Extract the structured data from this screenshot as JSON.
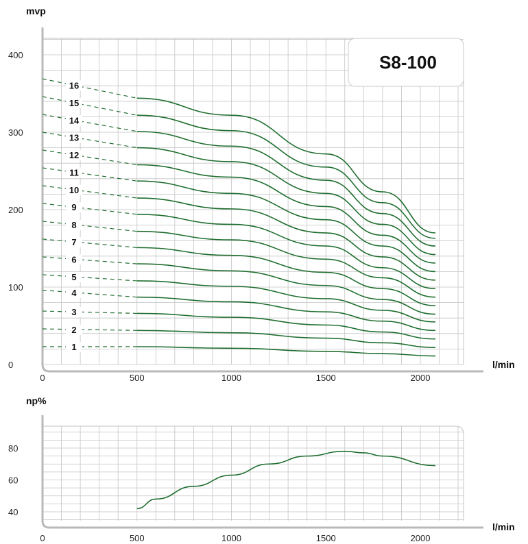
{
  "chart_data": [
    {
      "type": "line",
      "title": "S8-100",
      "ylabel": "mvp",
      "xlabel": "l/min",
      "xlim": [
        0,
        2200
      ],
      "ylim": [
        0,
        420
      ],
      "x_ticks": [
        "0",
        "500",
        "1000",
        "1500",
        "2000"
      ],
      "y_ticks": [
        "0",
        "100",
        "200",
        "300",
        "400"
      ],
      "grid": true,
      "line_color": "#1f6e2f",
      "x_start_dashed": 0,
      "x_start_solid": 500,
      "series": [
        {
          "name": "1",
          "x": [
            500,
            1000,
            1500,
            1800,
            2080
          ],
          "y": [
            23,
            21,
            17,
            14,
            11
          ]
        },
        {
          "name": "2",
          "x": [
            500,
            1000,
            1500,
            1800,
            2080
          ],
          "y": [
            44,
            41,
            34,
            28,
            22
          ]
        },
        {
          "name": "3",
          "x": [
            500,
            1000,
            1500,
            1800,
            2080
          ],
          "y": [
            66,
            61,
            51,
            42,
            33
          ]
        },
        {
          "name": "4",
          "x": [
            500,
            1000,
            1500,
            1800,
            2080
          ],
          "y": [
            87,
            81,
            68,
            56,
            44
          ]
        },
        {
          "name": "5",
          "x": [
            500,
            1000,
            1500,
            1800,
            2080
          ],
          "y": [
            108,
            101,
            85,
            70,
            55
          ]
        },
        {
          "name": "6",
          "x": [
            500,
            1000,
            1500,
            1800,
            2080
          ],
          "y": [
            130,
            121,
            102,
            84,
            65
          ]
        },
        {
          "name": "7",
          "x": [
            500,
            1000,
            1500,
            1800,
            2080
          ],
          "y": [
            151,
            141,
            119,
            98,
            76
          ]
        },
        {
          "name": "8",
          "x": [
            500,
            1000,
            1500,
            1800,
            2080
          ],
          "y": [
            172,
            161,
            136,
            112,
            87
          ]
        },
        {
          "name": "9",
          "x": [
            500,
            1000,
            1500,
            1800,
            2080
          ],
          "y": [
            194,
            181,
            153,
            125,
            98
          ]
        },
        {
          "name": "10",
          "x": [
            500,
            1000,
            1500,
            1800,
            2080
          ],
          "y": [
            215,
            201,
            170,
            139,
            109
          ]
        },
        {
          "name": "11",
          "x": [
            500,
            1000,
            1500,
            1800,
            2080
          ],
          "y": [
            237,
            221,
            187,
            153,
            120
          ]
        },
        {
          "name": "12",
          "x": [
            500,
            1000,
            1500,
            1800,
            2080
          ],
          "y": [
            258,
            242,
            204,
            167,
            131
          ]
        },
        {
          "name": "13",
          "x": [
            500,
            1000,
            1500,
            1800,
            2080
          ],
          "y": [
            280,
            262,
            221,
            181,
            142
          ]
        },
        {
          "name": "14",
          "x": [
            500,
            1000,
            1500,
            1800,
            2080
          ],
          "y": [
            301,
            282,
            238,
            195,
            153
          ]
        },
        {
          "name": "15",
          "x": [
            500,
            1000,
            1500,
            1800,
            2080
          ],
          "y": [
            322,
            302,
            255,
            209,
            163
          ]
        },
        {
          "name": "16",
          "x": [
            500,
            1000,
            1500,
            1800,
            2080
          ],
          "y": [
            344,
            322,
            272,
            223,
            170
          ]
        }
      ],
      "dashed_start_y": [
        23,
        46,
        69,
        96,
        116,
        139,
        162,
        185,
        208,
        231,
        254,
        277,
        300,
        323,
        346,
        369
      ]
    },
    {
      "type": "line",
      "title": "",
      "ylabel": "np%",
      "xlabel": "l/min",
      "xlim": [
        0,
        2200
      ],
      "ylim": [
        30,
        90
      ],
      "x_ticks": [
        "0",
        "500",
        "1000",
        "1500",
        "2000"
      ],
      "y_ticks": [
        "40",
        "60",
        "80"
      ],
      "grid": true,
      "line_color": "#1f6e2f",
      "series": [
        {
          "name": "",
          "x": [
            500,
            600,
            800,
            1000,
            1200,
            1400,
            1600,
            1700,
            1800,
            2080
          ],
          "y": [
            42,
            48,
            56,
            63,
            70,
            75,
            78,
            77,
            75,
            69
          ]
        }
      ]
    }
  ]
}
